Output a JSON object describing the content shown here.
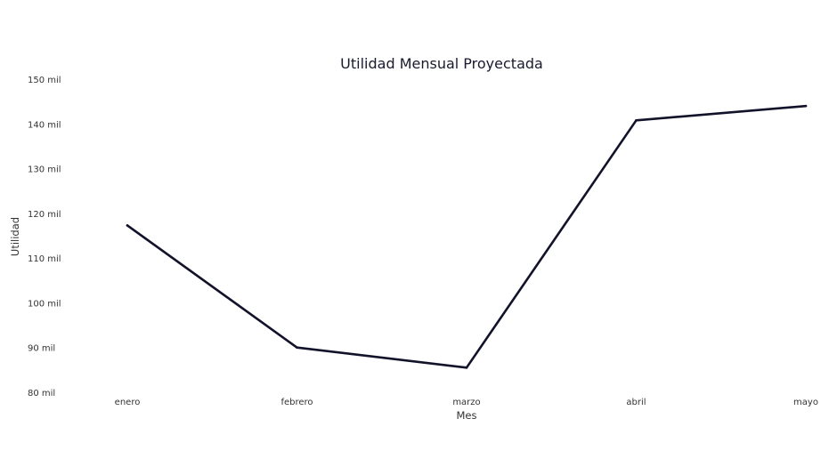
{
  "chart_data": {
    "type": "line",
    "title": "Utilidad Mensual Proyectada",
    "xlabel": "Mes",
    "ylabel": "Utilidad",
    "categories": [
      "enero",
      "febrero",
      "marzo",
      "abril",
      "mayo"
    ],
    "series": [
      {
        "values": [
          117500,
          90200,
          85700,
          141000,
          144200
        ]
      }
    ],
    "ylim": [
      80000,
      150000
    ],
    "yticks": [
      80000,
      90000,
      100000,
      110000,
      120000,
      130000,
      140000,
      150000
    ],
    "ytick_labels": [
      "80 mil",
      "90 mil",
      "100 mil",
      "110 mil",
      "120 mil",
      "130 mil",
      "140 mil",
      "150 mil"
    ],
    "grid": false,
    "line_color": "#12122a"
  }
}
